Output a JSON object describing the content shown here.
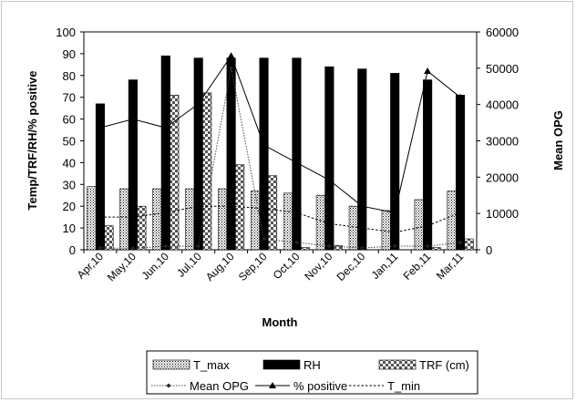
{
  "chart_data": {
    "type": "bar",
    "xlabel": "Month",
    "ylabel": "Temp/TRF/RH/% positive",
    "y2label": "Mean OPG",
    "ylim": [
      0,
      100
    ],
    "y2lim": [
      0,
      60000
    ],
    "yticks": [
      0,
      10,
      20,
      30,
      40,
      50,
      60,
      70,
      80,
      90,
      100
    ],
    "y2ticks": [
      0,
      10000,
      20000,
      30000,
      40000,
      50000,
      60000
    ],
    "categories": [
      "Apr,10",
      "May,10",
      "Jun,10",
      "Jul,10",
      "Aug,10",
      "Sep,10",
      "Oct,10",
      "Nov,10",
      "Dec,10",
      "Jan,11",
      "Feb,11",
      "Mar,11"
    ],
    "bar_series": [
      {
        "name": "T_max",
        "values": [
          29,
          28,
          28,
          28,
          28,
          27,
          26,
          25,
          20,
          18,
          23,
          27
        ]
      },
      {
        "name": "RH",
        "values": [
          67,
          78,
          89,
          88,
          88,
          88,
          88,
          84,
          83,
          81,
          78,
          71
        ]
      },
      {
        "name": "TRF (cm)",
        "values": [
          11,
          20,
          71,
          72,
          39,
          34,
          1,
          2,
          0,
          0,
          1,
          5
        ]
      }
    ],
    "line_series": [
      {
        "name": "Mean OPG",
        "axis": "right",
        "values": [
          500,
          400,
          1000,
          1000,
          50000,
          3000,
          2000,
          1000,
          500,
          1000,
          1000,
          2000
        ]
      },
      {
        "name": "% positive",
        "axis": "left",
        "values": [
          56,
          60,
          56,
          67,
          89,
          48,
          40,
          32,
          20,
          17,
          82,
          70
        ]
      },
      {
        "name": "T_min",
        "axis": "left",
        "values": [
          15,
          15,
          17,
          20,
          20,
          19,
          17,
          12,
          10,
          8,
          11,
          17
        ]
      }
    ],
    "legend_position": "bottom",
    "grid": false
  }
}
